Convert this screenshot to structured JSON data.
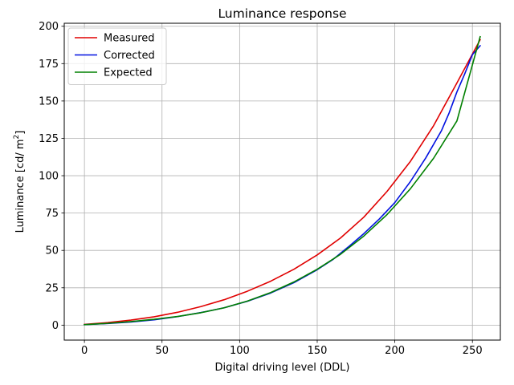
{
  "chart_data": {
    "type": "line",
    "title": "Luminance response",
    "xlabel": "Digital driving level (DDL)",
    "ylabel_text": "Luminance [cd/ m",
    "ylabel_sup": "2",
    "ylabel_close": "]",
    "xlim": [
      -13,
      268
    ],
    "ylim": [
      -10,
      202
    ],
    "xticks": [
      0,
      50,
      100,
      150,
      200,
      250
    ],
    "yticks": [
      0,
      25,
      50,
      75,
      100,
      125,
      150,
      175,
      200
    ],
    "grid": true,
    "legend_position": "top-left",
    "colors": {
      "measured": "#e00000",
      "corrected": "#0010e0",
      "expected": "#008000"
    },
    "series": [
      {
        "name": "Measured",
        "color": "#e00000",
        "x": [
          0,
          15,
          30,
          45,
          60,
          75,
          90,
          105,
          120,
          135,
          150,
          165,
          180,
          195,
          210,
          225,
          240,
          255
        ],
        "y": [
          0.5,
          1.7,
          3.4,
          5.6,
          8.6,
          12.4,
          17,
          22.7,
          29.4,
          37.4,
          47,
          58.3,
          72.2,
          89.5,
          109.5,
          133.5,
          162,
          191
        ]
      },
      {
        "name": "Corrected",
        "color": "#0010e0",
        "x": [
          0,
          15,
          30,
          45,
          60,
          75,
          90,
          105,
          120,
          135,
          150,
          160,
          170,
          180,
          190,
          200,
          210,
          220,
          230,
          235,
          240,
          245,
          250,
          255
        ],
        "y": [
          0.3,
          1.1,
          2.1,
          3.6,
          5.7,
          8.4,
          11.6,
          16,
          21.5,
          28.4,
          37.1,
          43.8,
          52.3,
          61.2,
          71,
          82,
          96,
          112,
          130,
          142,
          156,
          168,
          181,
          187
        ]
      },
      {
        "name": "Expected",
        "color": "#008000",
        "x": [
          0,
          15,
          30,
          45,
          60,
          75,
          90,
          105,
          120,
          135,
          150,
          165,
          180,
          195,
          210,
          225,
          240,
          255
        ],
        "y": [
          0.3,
          1.2,
          2.4,
          3.9,
          5.8,
          8.3,
          11.6,
          16.1,
          21.8,
          28.9,
          37.4,
          47.4,
          59.6,
          74,
          91.2,
          111.7,
          136.6,
          193
        ]
      }
    ]
  }
}
